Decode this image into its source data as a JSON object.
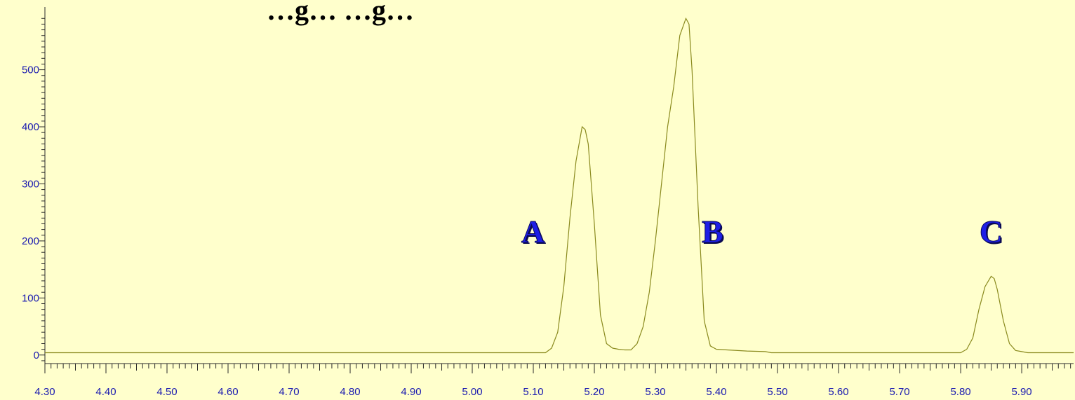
{
  "chart_data": {
    "type": "line",
    "title": "…g… …g…",
    "xlabel": "",
    "ylabel": "",
    "xlim": [
      4.3,
      5.985
    ],
    "ylim": [
      -15,
      610
    ],
    "x_ticks": [
      "4.30",
      "4.40",
      "4.50",
      "4.60",
      "4.70",
      "4.80",
      "4.90",
      "5.00",
      "5.10",
      "5.20",
      "5.30",
      "5.40",
      "5.50",
      "5.60",
      "5.70",
      "5.80",
      "5.90"
    ],
    "y_ticks": [
      "0",
      "100",
      "200",
      "300",
      "400",
      "500"
    ],
    "baseline": 4,
    "peaks": [
      {
        "label": "A",
        "x": 5.18,
        "y": 400
      },
      {
        "label": "B",
        "x": 5.35,
        "y": 590
      },
      {
        "label": "C",
        "x": 5.85,
        "y": 138
      }
    ],
    "series": [
      {
        "points": [
          [
            4.3,
            4
          ],
          [
            5.12,
            4
          ],
          [
            5.13,
            12
          ],
          [
            5.14,
            40
          ],
          [
            5.15,
            120
          ],
          [
            5.16,
            240
          ],
          [
            5.17,
            340
          ],
          [
            5.18,
            400
          ],
          [
            5.185,
            395
          ],
          [
            5.19,
            370
          ],
          [
            5.2,
            230
          ],
          [
            5.21,
            70
          ],
          [
            5.22,
            20
          ],
          [
            5.23,
            12
          ],
          [
            5.24,
            10
          ],
          [
            5.25,
            9
          ],
          [
            5.26,
            9
          ],
          [
            5.27,
            20
          ],
          [
            5.28,
            50
          ],
          [
            5.29,
            110
          ],
          [
            5.3,
            200
          ],
          [
            5.31,
            300
          ],
          [
            5.32,
            400
          ],
          [
            5.33,
            470
          ],
          [
            5.34,
            560
          ],
          [
            5.35,
            590
          ],
          [
            5.355,
            580
          ],
          [
            5.36,
            500
          ],
          [
            5.37,
            260
          ],
          [
            5.38,
            60
          ],
          [
            5.39,
            16
          ],
          [
            5.4,
            10
          ],
          [
            5.45,
            7
          ],
          [
            5.48,
            6
          ],
          [
            5.49,
            4
          ],
          [
            5.8,
            4
          ],
          [
            5.81,
            10
          ],
          [
            5.82,
            30
          ],
          [
            5.83,
            80
          ],
          [
            5.84,
            120
          ],
          [
            5.85,
            138
          ],
          [
            5.855,
            134
          ],
          [
            5.86,
            115
          ],
          [
            5.87,
            60
          ],
          [
            5.88,
            20
          ],
          [
            5.89,
            8
          ],
          [
            5.9,
            6
          ],
          [
            5.91,
            4
          ],
          [
            5.985,
            4
          ]
        ]
      }
    ],
    "colors": {
      "background": "#FFFFCC",
      "trace": "#8A8A1E",
      "axis": "#2A2A2A",
      "tick_label": "#1A1AB0",
      "peak_label": "#1E1EE6"
    },
    "grid": false
  }
}
